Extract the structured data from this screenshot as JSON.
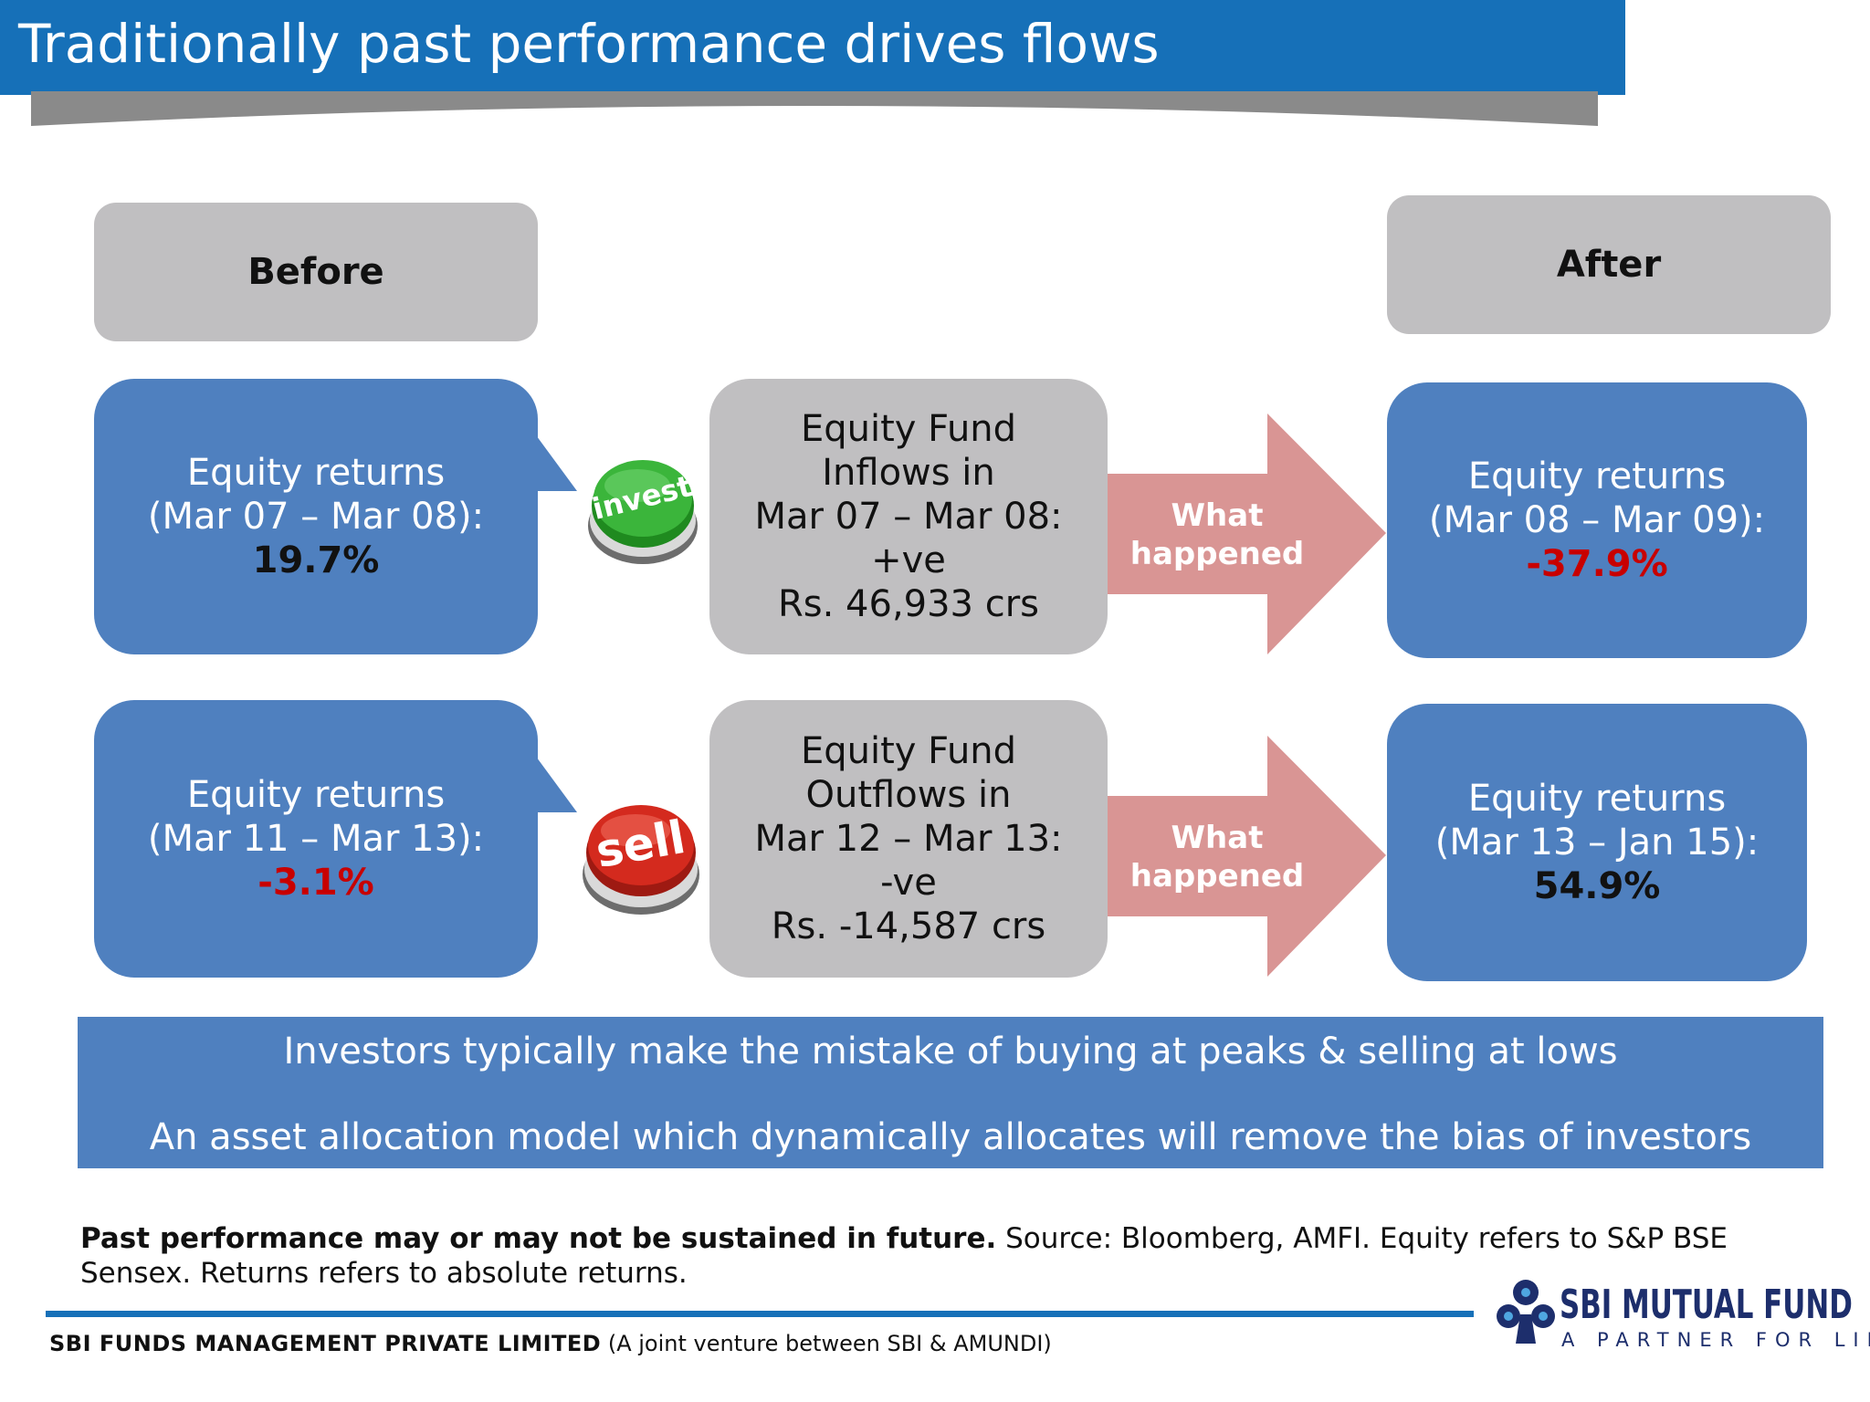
{
  "title": "Traditionally past performance drives flows",
  "headers": {
    "before": "Before",
    "after": "After"
  },
  "rows": [
    {
      "before": {
        "line1": "Equity returns",
        "line2": "(Mar 07 – Mar 08):",
        "value": "19.7%"
      },
      "button": "invest",
      "flow": {
        "line1": "Equity Fund",
        "line2": "Inflows in",
        "line3": "Mar 07 – Mar 08:",
        "line4": "+ve",
        "line5": "Rs. 46,933 crs"
      },
      "arrow": {
        "line1": "What",
        "line2": "happened"
      },
      "after": {
        "line1": "Equity returns",
        "line2": "(Mar 08 – Mar 09):",
        "value": "-37.9%"
      }
    },
    {
      "before": {
        "line1": "Equity returns",
        "line2": "(Mar 11 – Mar 13):",
        "value": "-3.1%"
      },
      "button": "sell",
      "flow": {
        "line1": "Equity Fund",
        "line2": "Outflows in",
        "line3": "Mar 12 – Mar 13:",
        "line4": "-ve",
        "line5": "Rs. -14,587 crs"
      },
      "arrow": {
        "line1": "What",
        "line2": "happened"
      },
      "after": {
        "line1": "Equity returns",
        "line2": "(Mar 13 – Jan 15):",
        "value": "54.9%"
      }
    }
  ],
  "banner": {
    "line1": "Investors typically make the mistake of buying at peaks & selling at lows",
    "line2": "An asset allocation model which dynamically allocates will remove the bias of investors"
  },
  "disclaimer": {
    "bold": "Past performance may or may not be sustained in future.",
    "rest": " Source: Bloomberg, AMFI. Equity refers to S&P BSE Sensex. Returns refers to absolute returns."
  },
  "footer": {
    "company": "SBI FUNDS MANAGEMENT PRIVATE LIMITED",
    "company_note": " (A joint venture between SBI & AMUNDI)"
  },
  "logo": {
    "name": "SBI MUTUAL FUND",
    "tagline": "A PARTNER FOR LIFE"
  },
  "colors": {
    "title_bar": "#1670b8",
    "box_blue": "#4f80bf",
    "box_grey": "#c0bfc1",
    "arrow": "#d99594",
    "negative": "#c80000",
    "invest_button": "#3bb53b",
    "sell_button": "#d42a1e"
  }
}
